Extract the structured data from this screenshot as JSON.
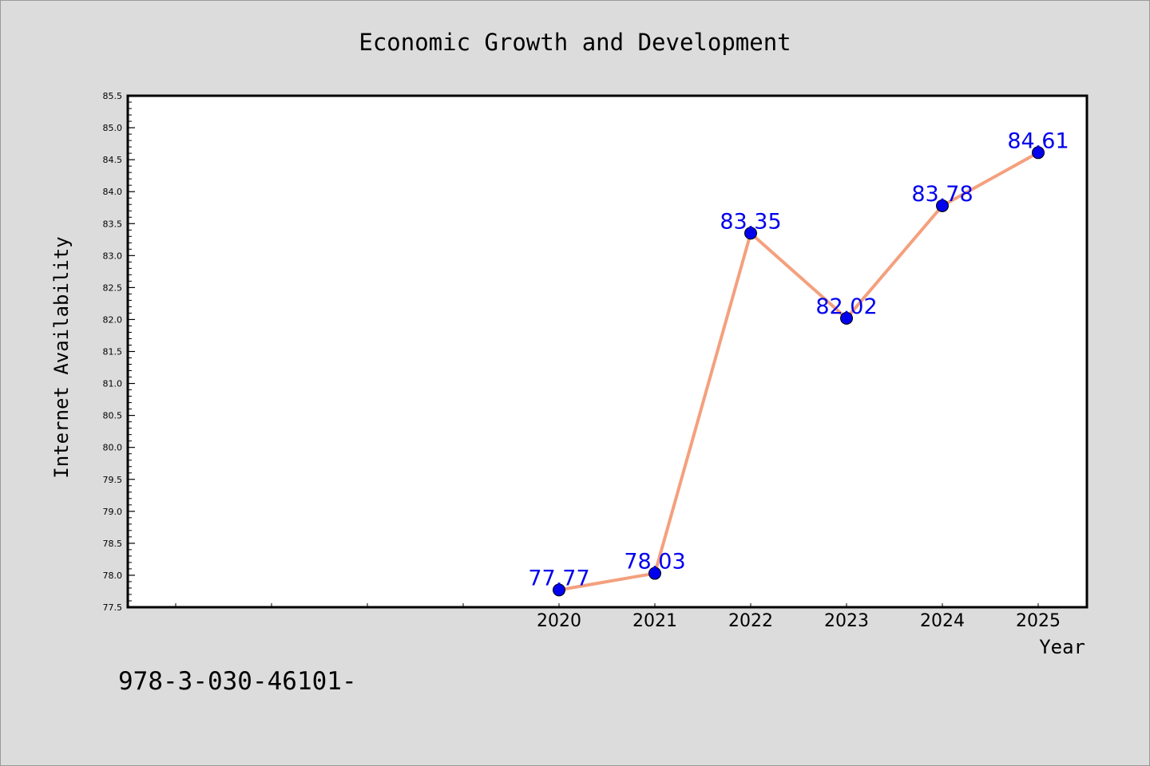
{
  "chart_data": {
    "type": "line",
    "title": "Economic Growth and Development",
    "xlabel": "Year",
    "ylabel": "Internet Availability",
    "x_ticks": [
      "",
      "",
      "",
      "",
      "2020",
      "2021",
      "2022",
      "2023",
      "2024",
      "2025"
    ],
    "x": [
      "2020",
      "2021",
      "2022",
      "2023",
      "2024",
      "2025"
    ],
    "series": [
      {
        "values": [
          77.77,
          78.03,
          83.35,
          82.02,
          83.78,
          84.61
        ],
        "labels": [
          "77.77",
          "78.03",
          "83.35",
          "82.02",
          "83.78",
          "84.61"
        ],
        "line_color": "#f4a07e",
        "marker_color": "#0000ee"
      }
    ],
    "ylim": [
      77.5,
      85.5
    ],
    "y_ticks": [
      "77.5",
      "78.0",
      "78.5",
      "79.0",
      "79.5",
      "80.0",
      "80.5",
      "81.0",
      "81.5",
      "82.0",
      "82.5",
      "83.0",
      "83.5",
      "84.0",
      "84.5",
      "85.0",
      "85.5"
    ],
    "grid": false,
    "label_color": "#0000ee"
  },
  "footer": {
    "code": "978-3-030-46101-"
  }
}
